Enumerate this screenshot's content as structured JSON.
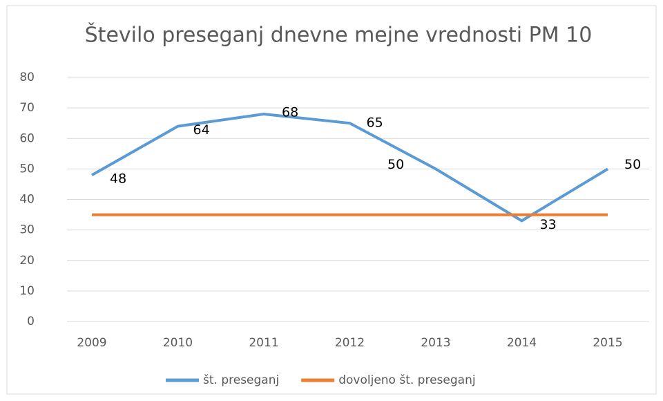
{
  "chart_data": {
    "type": "line",
    "title": "Število preseganj dnevne mejne vrednosti PM 10",
    "categories": [
      "2009",
      "2010",
      "2011",
      "2012",
      "2013",
      "2014",
      "2015"
    ],
    "series": [
      {
        "name": "št. preseganj",
        "color": "#5b9bd5",
        "values": [
          48,
          64,
          68,
          65,
          50,
          33,
          50
        ],
        "data_labels": true
      },
      {
        "name": "dovoljeno št. preseganj",
        "color": "#ed7d31",
        "values": [
          35,
          35,
          35,
          35,
          35,
          35,
          35
        ],
        "data_labels": false
      }
    ],
    "ylim": [
      0,
      80
    ],
    "yticks": [
      0,
      10,
      20,
      30,
      40,
      50,
      60,
      70,
      80
    ],
    "grid": true,
    "legend": "bottom"
  }
}
